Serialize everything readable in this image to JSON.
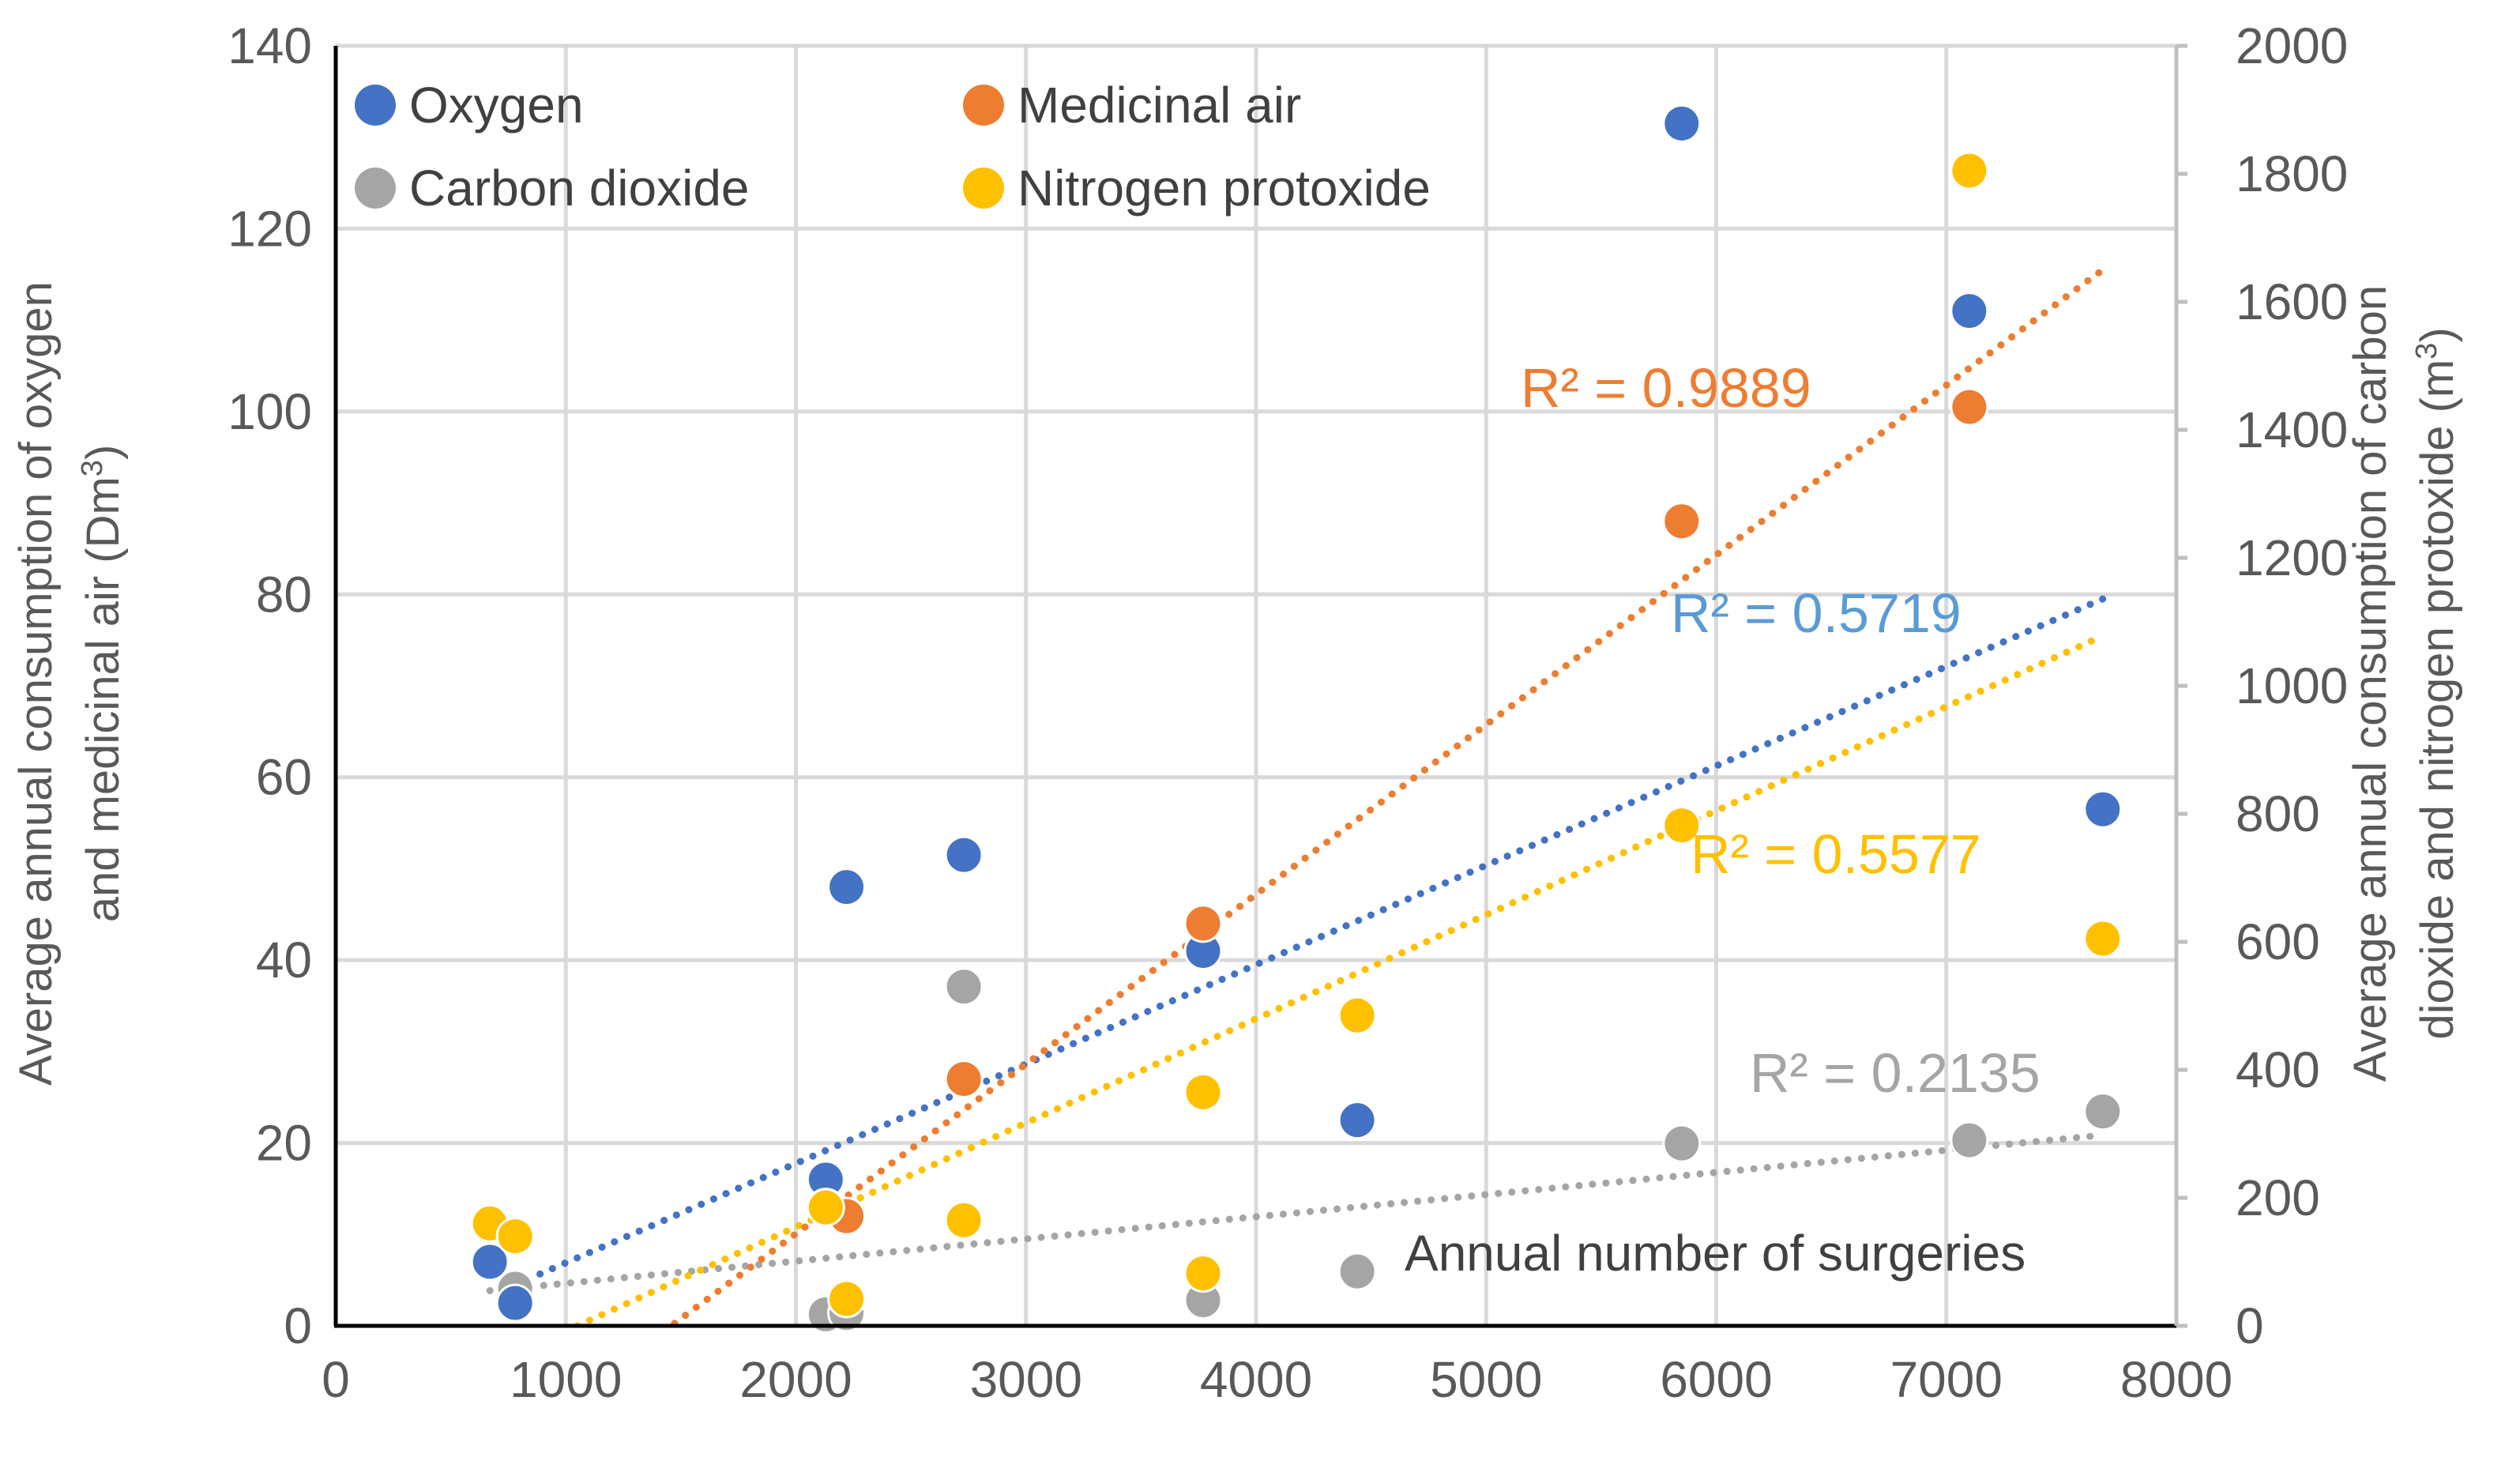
{
  "chart_data": {
    "type": "scatter",
    "title": "",
    "xlabel": "",
    "xlim": [
      0,
      8000
    ],
    "x_ticks": [
      "0",
      "1000",
      "2000",
      "3000",
      "4000",
      "5000",
      "6000",
      "7000",
      "8000"
    ],
    "y_left": {
      "label_line1": "Average annual consumption of oxygen",
      "label_line2": "and medicinal air (Dm",
      "label_sup": "3",
      "label_close": ")",
      "lim": [
        0,
        140
      ],
      "ticks": [
        "0",
        "20",
        "40",
        "60",
        "80",
        "100",
        "120",
        "140"
      ]
    },
    "y_right": {
      "label_line1": "Average annual consumption of carbon",
      "label_line2": "dioxide and nitrogen protoxide (m",
      "label_sup": "3",
      "label_close": ")",
      "lim": [
        0,
        2000
      ],
      "ticks": [
        "0",
        "200",
        "400",
        "600",
        "800",
        "1000",
        "1200",
        "1400",
        "1600",
        "1800",
        "2000"
      ]
    },
    "grid": true,
    "legend_position": "top-left",
    "series": [
      {
        "name": "Oxygen",
        "axis": "left",
        "color": "#4472C4",
        "points": [
          [
            670,
            7
          ],
          [
            780,
            2.5
          ],
          [
            2130,
            16
          ],
          [
            2220,
            48
          ],
          [
            2730,
            51.5
          ],
          [
            3770,
            41
          ],
          [
            3770,
            6
          ],
          [
            4440,
            22.5
          ],
          [
            5850,
            131.5
          ],
          [
            7100,
            111
          ],
          [
            7680,
            56.5
          ]
        ],
        "trend": {
          "x": [
            780,
            7680
          ],
          "y": [
            4.5,
            79.5
          ]
        },
        "r2": "R² = 0.5719",
        "r2_color": "#5B9BD5"
      },
      {
        "name": "Medicinal air",
        "axis": "left",
        "color": "#ED7D31",
        "points": [
          [
            2130,
            13
          ],
          [
            2220,
            12
          ],
          [
            2730,
            27
          ],
          [
            3770,
            44
          ],
          [
            5850,
            88
          ],
          [
            7100,
            100.5
          ]
        ],
        "trend": {
          "x": [
            1000,
            7680
          ],
          "y": [
            -8.5,
            115.5
          ]
        },
        "r2": "R² = 0.9889",
        "r2_color": "#ED7D31"
      },
      {
        "name": "Carbon dioxide",
        "axis": "right",
        "color": "#A5A5A5",
        "points": [
          [
            780,
            58
          ],
          [
            2130,
            18
          ],
          [
            2220,
            20
          ],
          [
            2730,
            530
          ],
          [
            3770,
            40
          ],
          [
            4440,
            85
          ],
          [
            5850,
            285
          ],
          [
            7100,
            290
          ],
          [
            7680,
            335
          ]
        ],
        "trend": {
          "x": [
            670,
            7680
          ],
          "y": [
            55,
            298
          ]
        },
        "r2": "R² = 0.2135",
        "r2_color": "#A5A5A5"
      },
      {
        "name": "Nitrogen protoxide",
        "axis": "right",
        "color": "#FFC000",
        "points": [
          [
            670,
            160
          ],
          [
            780,
            140
          ],
          [
            2130,
            185
          ],
          [
            2220,
            42
          ],
          [
            2730,
            165
          ],
          [
            3770,
            365
          ],
          [
            3770,
            82
          ],
          [
            4440,
            485
          ],
          [
            5850,
            782
          ],
          [
            7100,
            1805
          ],
          [
            7680,
            605
          ]
        ],
        "trend": {
          "x": [
            1050,
            7680
          ],
          "y": [
            0,
            1078
          ]
        },
        "r2": "R² = 0.5577",
        "r2_color": "#FFC000"
      }
    ],
    "annotation": "Annual number of surgeries"
  }
}
